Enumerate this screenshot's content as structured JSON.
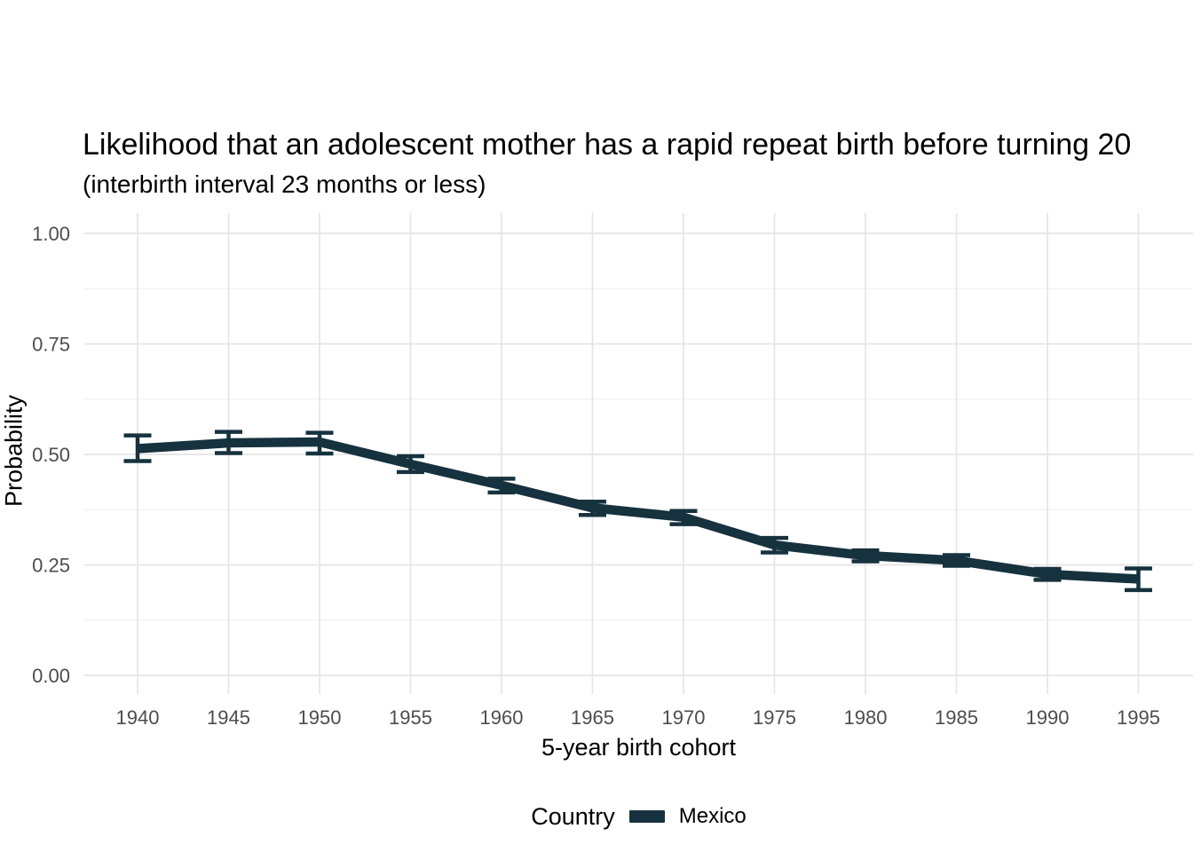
{
  "chart_data": {
    "type": "line",
    "title": "Likelihood that an adolescent mother has a rapid repeat birth before turning 20",
    "subtitle": "(interbirth interval 23 months or less)",
    "xlabel": "5-year birth cohort",
    "ylabel": "Probability",
    "ylim": [
      0.0,
      1.0
    ],
    "xlim": [
      1940,
      1995
    ],
    "yticks": [
      0.0,
      0.25,
      0.5,
      0.75,
      1.0
    ],
    "ytick_labels": [
      "0.00",
      "0.25",
      "0.50",
      "0.75",
      "1.00"
    ],
    "yticks_minor": [
      0.125,
      0.375,
      0.625,
      0.875
    ],
    "x": [
      1940,
      1945,
      1950,
      1955,
      1960,
      1965,
      1970,
      1975,
      1980,
      1985,
      1990,
      1995
    ],
    "series": [
      {
        "name": "Mexico",
        "color": "#16323e",
        "values": [
          0.513,
          0.526,
          0.528,
          0.478,
          0.43,
          0.379,
          0.358,
          0.295,
          0.271,
          0.26,
          0.229,
          0.218
        ],
        "ci_lower": [
          0.485,
          0.503,
          0.502,
          0.46,
          0.414,
          0.363,
          0.342,
          0.278,
          0.258,
          0.248,
          0.216,
          0.193
        ],
        "ci_upper": [
          0.543,
          0.551,
          0.549,
          0.496,
          0.445,
          0.393,
          0.372,
          0.311,
          0.283,
          0.272,
          0.241,
          0.242
        ]
      }
    ],
    "error_bars": true,
    "markers": false,
    "legend": {
      "title": "Country",
      "position": "bottom",
      "entries": [
        "Mexico"
      ]
    },
    "grid": {
      "show": true,
      "color_major": "#e5e5e5",
      "color_minor": "#f0f0f0",
      "background": "#ffffff"
    }
  }
}
